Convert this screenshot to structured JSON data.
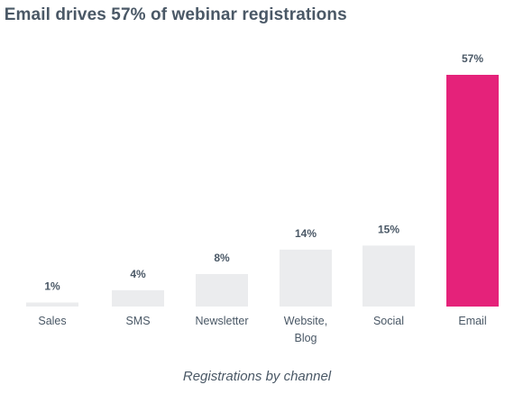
{
  "chart_data": {
    "type": "bar",
    "title": ". Email drives 57% of webinar registrations",
    "categories": [
      "Sales",
      "SMS",
      "Newsletter",
      "Website,\nBlog",
      "Social",
      "Email"
    ],
    "values": [
      1,
      4,
      8,
      14,
      15,
      57
    ],
    "value_labels": [
      "1%",
      "4%",
      "8%",
      "14%",
      "15%",
      "57%"
    ],
    "xlabel": "Registrations by channel",
    "ylabel": "",
    "ylim": [
      0,
      57
    ],
    "grid": false,
    "colors": {
      "default": "#ebecee",
      "highlight": "#e5227a",
      "highlight_category": "Email",
      "text": "#4a5866"
    }
  }
}
